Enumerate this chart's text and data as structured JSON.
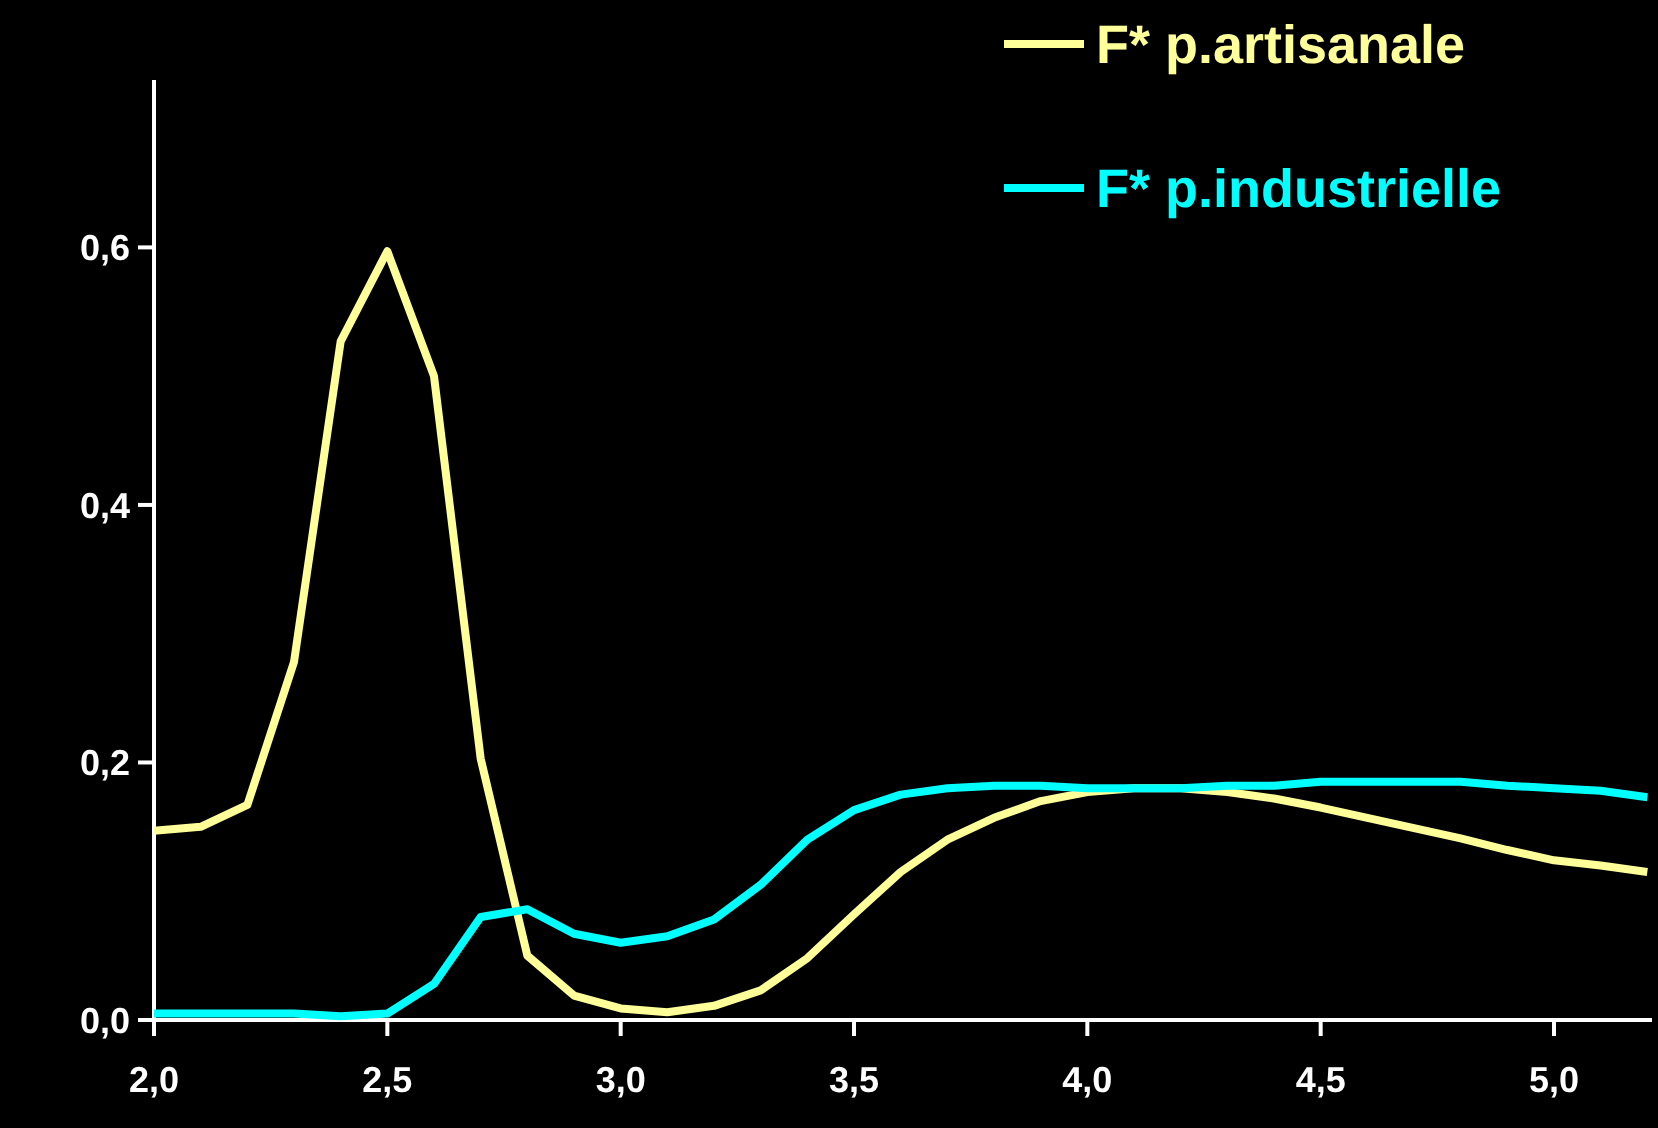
{
  "chart_data": {
    "type": "line",
    "x": [
      2.0,
      2.1,
      2.2,
      2.3,
      2.4,
      2.5,
      2.6,
      2.7,
      2.8,
      2.9,
      3.0,
      3.1,
      3.2,
      3.3,
      3.4,
      3.5,
      3.6,
      3.7,
      3.8,
      3.9,
      4.0,
      4.1,
      4.2,
      4.3,
      4.4,
      4.5,
      4.6,
      4.7,
      4.8,
      4.9,
      5.0,
      5.1,
      5.2
    ],
    "series": [
      {
        "name": "F* p.artisanale",
        "color": "#ffff99",
        "values": [
          0.147,
          0.15,
          0.167,
          0.278,
          0.527,
          0.597,
          0.5,
          0.203,
          0.05,
          0.019,
          0.009,
          0.006,
          0.011,
          0.023,
          0.048,
          0.082,
          0.115,
          0.14,
          0.157,
          0.17,
          0.177,
          0.18,
          0.18,
          0.177,
          0.172,
          0.165,
          0.157,
          0.149,
          0.141,
          0.132,
          0.124,
          0.12,
          0.115
        ]
      },
      {
        "name": "F* p.industrielle",
        "color": "#00ffff",
        "values": [
          0.005,
          0.005,
          0.005,
          0.005,
          0.003,
          0.005,
          0.028,
          0.08,
          0.086,
          0.067,
          0.06,
          0.065,
          0.078,
          0.105,
          0.14,
          0.163,
          0.175,
          0.18,
          0.182,
          0.182,
          0.18,
          0.18,
          0.18,
          0.182,
          0.182,
          0.185,
          0.185,
          0.185,
          0.185,
          0.182,
          0.18,
          0.178,
          0.173
        ]
      }
    ],
    "xlim": [
      2.0,
      5.21
    ],
    "ylim": [
      0,
      0.73
    ],
    "xticks": [
      {
        "value": 2.0,
        "label": "2,0"
      },
      {
        "value": 2.5,
        "label": "2,5"
      },
      {
        "value": 3.0,
        "label": "3,0"
      },
      {
        "value": 3.5,
        "label": "3,5"
      },
      {
        "value": 4.0,
        "label": "4,0"
      },
      {
        "value": 4.5,
        "label": "4,5"
      },
      {
        "value": 5.0,
        "label": "5,0"
      }
    ],
    "yticks": [
      {
        "value": 0,
        "label": "0,0"
      },
      {
        "value": 0.2,
        "label": "0,2"
      },
      {
        "value": 0.4,
        "label": "0,4"
      },
      {
        "value": 0.6,
        "label": "0,6"
      }
    ],
    "grid": false,
    "legend": "top right",
    "marker": "none",
    "line_style": "solid"
  }
}
